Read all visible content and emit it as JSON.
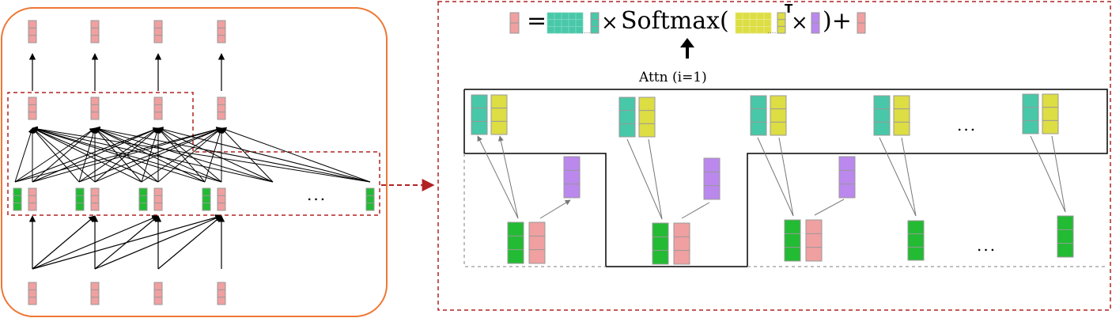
{
  "colors": {
    "frame_orange": "#ee7733",
    "dashed_red": "#b22222",
    "pink": "#f0a0a0",
    "green": "#22bb33",
    "teal": "#48c8a8",
    "yellow": "#dddd44",
    "purple": "#bb88ee",
    "cell_border": "#999999",
    "arrow_gray": "#777777"
  },
  "labels": {
    "attn": "Attn (i=1)",
    "ellipsis": "...",
    "eq_equals": "=",
    "eq_times1": "×",
    "eq_softmax": "Softmax(",
    "eq_transpose": "T",
    "eq_times2": "×",
    "eq_close_plus": ")+"
  }
}
